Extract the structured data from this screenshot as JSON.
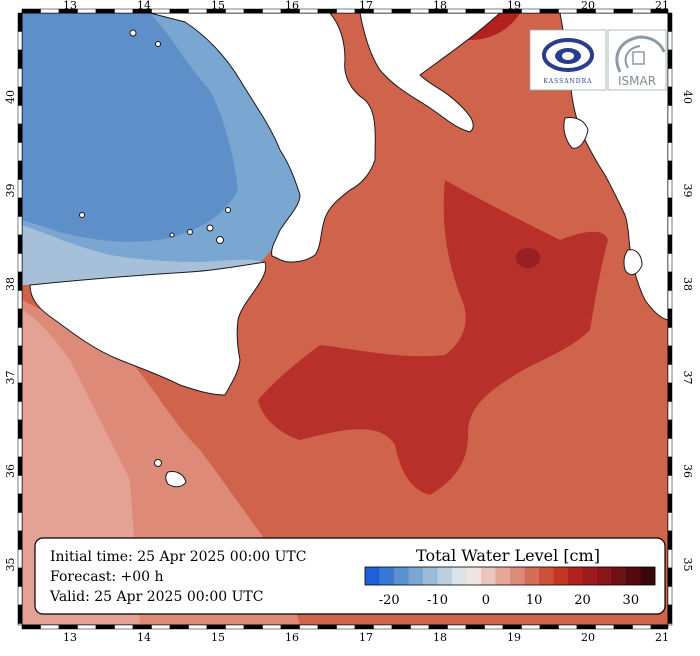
{
  "map": {
    "lon_labels": [
      "13",
      "14",
      "15",
      "16",
      "17",
      "18",
      "19",
      "20",
      "21"
    ],
    "lat_labels": [
      "40",
      "39",
      "38",
      "37",
      "36",
      "35"
    ]
  },
  "info": {
    "initial_time": "Initial time: 25 Apr 2025 00:00 UTC",
    "forecast": "Forecast: +00 h",
    "valid": "Valid: 25 Apr 2025 00:00 UTC"
  },
  "legend": {
    "title": "Total Water Level [cm]",
    "tick_labels": [
      "-20",
      "-10",
      "0",
      "10",
      "20",
      "30"
    ],
    "colors": [
      "#1f5fd8",
      "#3a78d4",
      "#5a8fd0",
      "#7aa6d2",
      "#9bbbd6",
      "#bccfdf",
      "#dde3ea",
      "#efe4e2",
      "#e9c7bf",
      "#e3a99b",
      "#dc8b78",
      "#d66d56",
      "#cf5038",
      "#c43626",
      "#b3211e",
      "#9e1a1c",
      "#891519",
      "#6e1116",
      "#520c10",
      "#3a080a"
    ]
  },
  "logos": {
    "left_text": "KASSANDRA",
    "right_text": "ISMAR"
  },
  "colors": {
    "land": "#ffffff",
    "sea_cold": "#6f9fd0",
    "sea_warm": "#d26a55",
    "sea_hot": "#b52a24"
  }
}
